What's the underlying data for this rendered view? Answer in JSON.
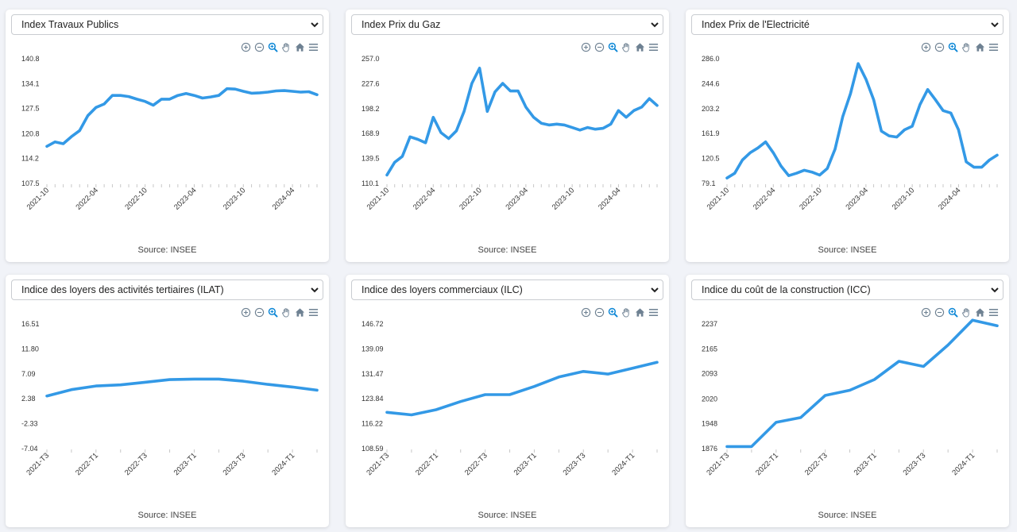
{
  "ui": {
    "source_label": "Source: INSEE",
    "toolbar_icons": [
      "zoom-in-icon",
      "zoom-out-icon",
      "zoom-selection-icon",
      "pan-hand-icon",
      "reset-home-icon",
      "menu-icon"
    ],
    "line_color": "#3399e6"
  },
  "chart_data": [
    {
      "type": "line",
      "title": "Index Travaux Publics",
      "yticks": [
        "107.5",
        "114.2",
        "120.8",
        "127.5",
        "134.1",
        "140.8"
      ],
      "ylim": [
        107.5,
        140.8
      ],
      "xlabels": [
        "2021-10",
        "2022-04",
        "2022-10",
        "2023-04",
        "2023-10",
        "2024-04"
      ],
      "x_label_index": [
        0,
        6,
        12,
        18,
        24,
        30
      ],
      "values": [
        117.4,
        118.6,
        118.1,
        120.0,
        121.6,
        125.6,
        127.8,
        128.7,
        131.0,
        131.0,
        130.7,
        130.0,
        129.4,
        128.4,
        130.0,
        130.0,
        131.0,
        131.5,
        131.0,
        130.3,
        130.6,
        131.0,
        132.8,
        132.7,
        132.1,
        131.6,
        131.7,
        131.9,
        132.2,
        132.3,
        132.1,
        131.9,
        132.0,
        131.2
      ]
    },
    {
      "type": "line",
      "title": "Index Prix du Gaz",
      "yticks": [
        "110.1",
        "139.5",
        "168.9",
        "198.2",
        "227.6",
        "257.0"
      ],
      "ylim": [
        110.1,
        257.0
      ],
      "xlabels": [
        "2021-10",
        "2022-04",
        "2022-10",
        "2023-04",
        "2023-10",
        "2024-04"
      ],
      "x_label_index": [
        0,
        6,
        12,
        18,
        24,
        30
      ],
      "values": [
        120.0,
        135.0,
        142.0,
        165.0,
        162.0,
        158.0,
        188.0,
        170.0,
        163.0,
        172.0,
        195.0,
        228.0,
        246.0,
        195.0,
        218.0,
        228.0,
        219.0,
        219.0,
        200.0,
        188.0,
        181.0,
        179.0,
        180.0,
        179.0,
        176.0,
        173.0,
        176.0,
        174.0,
        175.0,
        180.0,
        196.0,
        188.0,
        196.0,
        200.0,
        210.0,
        202.0
      ]
    },
    {
      "type": "line",
      "title": "Index Prix de l'Electricité",
      "yticks": [
        "79.1",
        "120.5",
        "161.9",
        "203.2",
        "244.6",
        "286.0"
      ],
      "ylim": [
        79.1,
        286.0
      ],
      "xlabels": [
        "2021-10",
        "2022-04",
        "2022-10",
        "2023-04",
        "2023-10",
        "2024-04"
      ],
      "x_label_index": [
        0,
        6,
        12,
        18,
        24,
        30
      ],
      "values": [
        88.0,
        96.0,
        118.0,
        130.0,
        138.0,
        148.0,
        130.0,
        108.0,
        92.0,
        96.0,
        101.0,
        98.0,
        93.0,
        104.0,
        136.0,
        190.0,
        228.0,
        278.0,
        252.0,
        218.0,
        166.0,
        158.0,
        156.0,
        168.0,
        174.0,
        210.0,
        235.0,
        218.0,
        200.0,
        196.0,
        168.0,
        115.0,
        106.0,
        106.0,
        118.0,
        126.0
      ]
    },
    {
      "type": "line",
      "title": "Indice des loyers des activités tertiaires (ILAT)",
      "yticks": [
        "-7.04",
        "-2.33",
        "2.38",
        "7.09",
        "11.80",
        "16.51"
      ],
      "ylim": [
        -7.04,
        16.51
      ],
      "xlabels": [
        "2021-T3",
        "2022-T1",
        "2022-T3",
        "2023-T1",
        "2023-T3",
        "2024-T1"
      ],
      "x_label_index": [
        0,
        2,
        4,
        6,
        8,
        10
      ],
      "values": [
        2.9,
        4.1,
        4.8,
        5.0,
        5.5,
        6.0,
        6.1,
        6.1,
        5.7,
        5.1,
        4.6,
        4.0
      ]
    },
    {
      "type": "line",
      "title": "Indice des loyers commerciaux (ILC)",
      "yticks": [
        "108.59",
        "116.22",
        "123.84",
        "131.47",
        "139.09",
        "146.72"
      ],
      "ylim": [
        108.59,
        146.72
      ],
      "xlabels": [
        "2021-T3",
        "2022-T1",
        "2022-T3",
        "2023-T1",
        "2023-T3",
        "2024-T1"
      ],
      "x_label_index": [
        0,
        2,
        4,
        6,
        8,
        10
      ],
      "values": [
        119.7,
        118.9,
        120.5,
        123.0,
        125.1,
        125.1,
        127.6,
        130.5,
        132.2,
        131.4,
        133.2,
        135.0
      ]
    },
    {
      "type": "line",
      "title": "Indice du coût de la construction (ICC)",
      "yticks": [
        "1876",
        "1948",
        "2020",
        "2093",
        "2165",
        "2237"
      ],
      "ylim": [
        1876,
        2237
      ],
      "xlabels": [
        "2021-T3",
        "2022-T1",
        "2022-T3",
        "2023-T1",
        "2023-T3",
        "2024-T1"
      ],
      "x_label_index": [
        0,
        2,
        4,
        6,
        8,
        10
      ],
      "values": [
        1882,
        1882,
        1952,
        1966,
        2030,
        2045,
        2076,
        2129,
        2114,
        2176,
        2248,
        2232
      ]
    }
  ]
}
